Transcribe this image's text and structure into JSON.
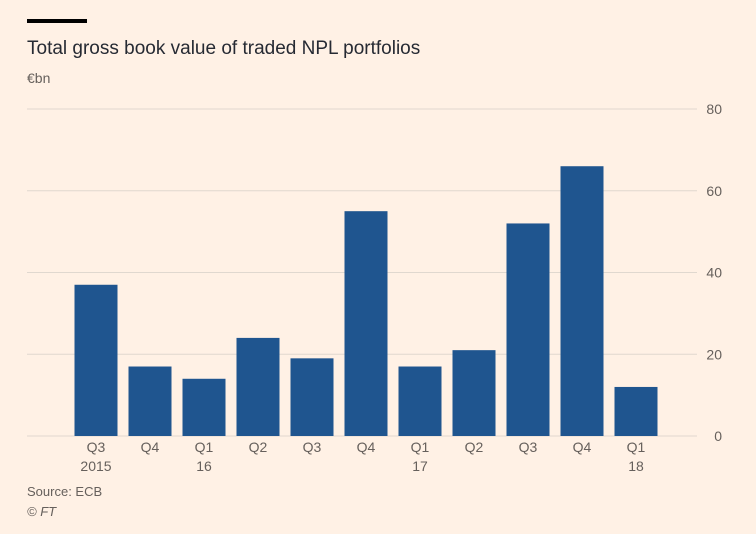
{
  "header": {
    "title": "Total gross book value of traded NPL portfolios",
    "unit": "€bn"
  },
  "footer": {
    "source": "Source: ECB",
    "credit": "© FT"
  },
  "colors": {
    "background": "#fff1e5",
    "bar": "#1f558f",
    "grid": "#e0d8cf",
    "text": "#66605c"
  },
  "chart_data": {
    "type": "bar",
    "title": "Total gross book value of traded NPL portfolios",
    "ylabel": "€bn",
    "ylim": [
      0,
      80
    ],
    "yticks": [
      0,
      20,
      40,
      60,
      80
    ],
    "y_axis_side": "right",
    "grid": true,
    "categories": [
      "Q3",
      "Q4",
      "Q1",
      "Q2",
      "Q3",
      "Q4",
      "Q1",
      "Q2",
      "Q3",
      "Q4",
      "Q1"
    ],
    "category_years": [
      "2015",
      "",
      "16",
      "",
      "",
      "",
      "17",
      "",
      "",
      "",
      "18"
    ],
    "values": [
      37,
      17,
      14,
      24,
      19,
      55,
      17,
      21,
      52,
      66,
      12
    ]
  }
}
